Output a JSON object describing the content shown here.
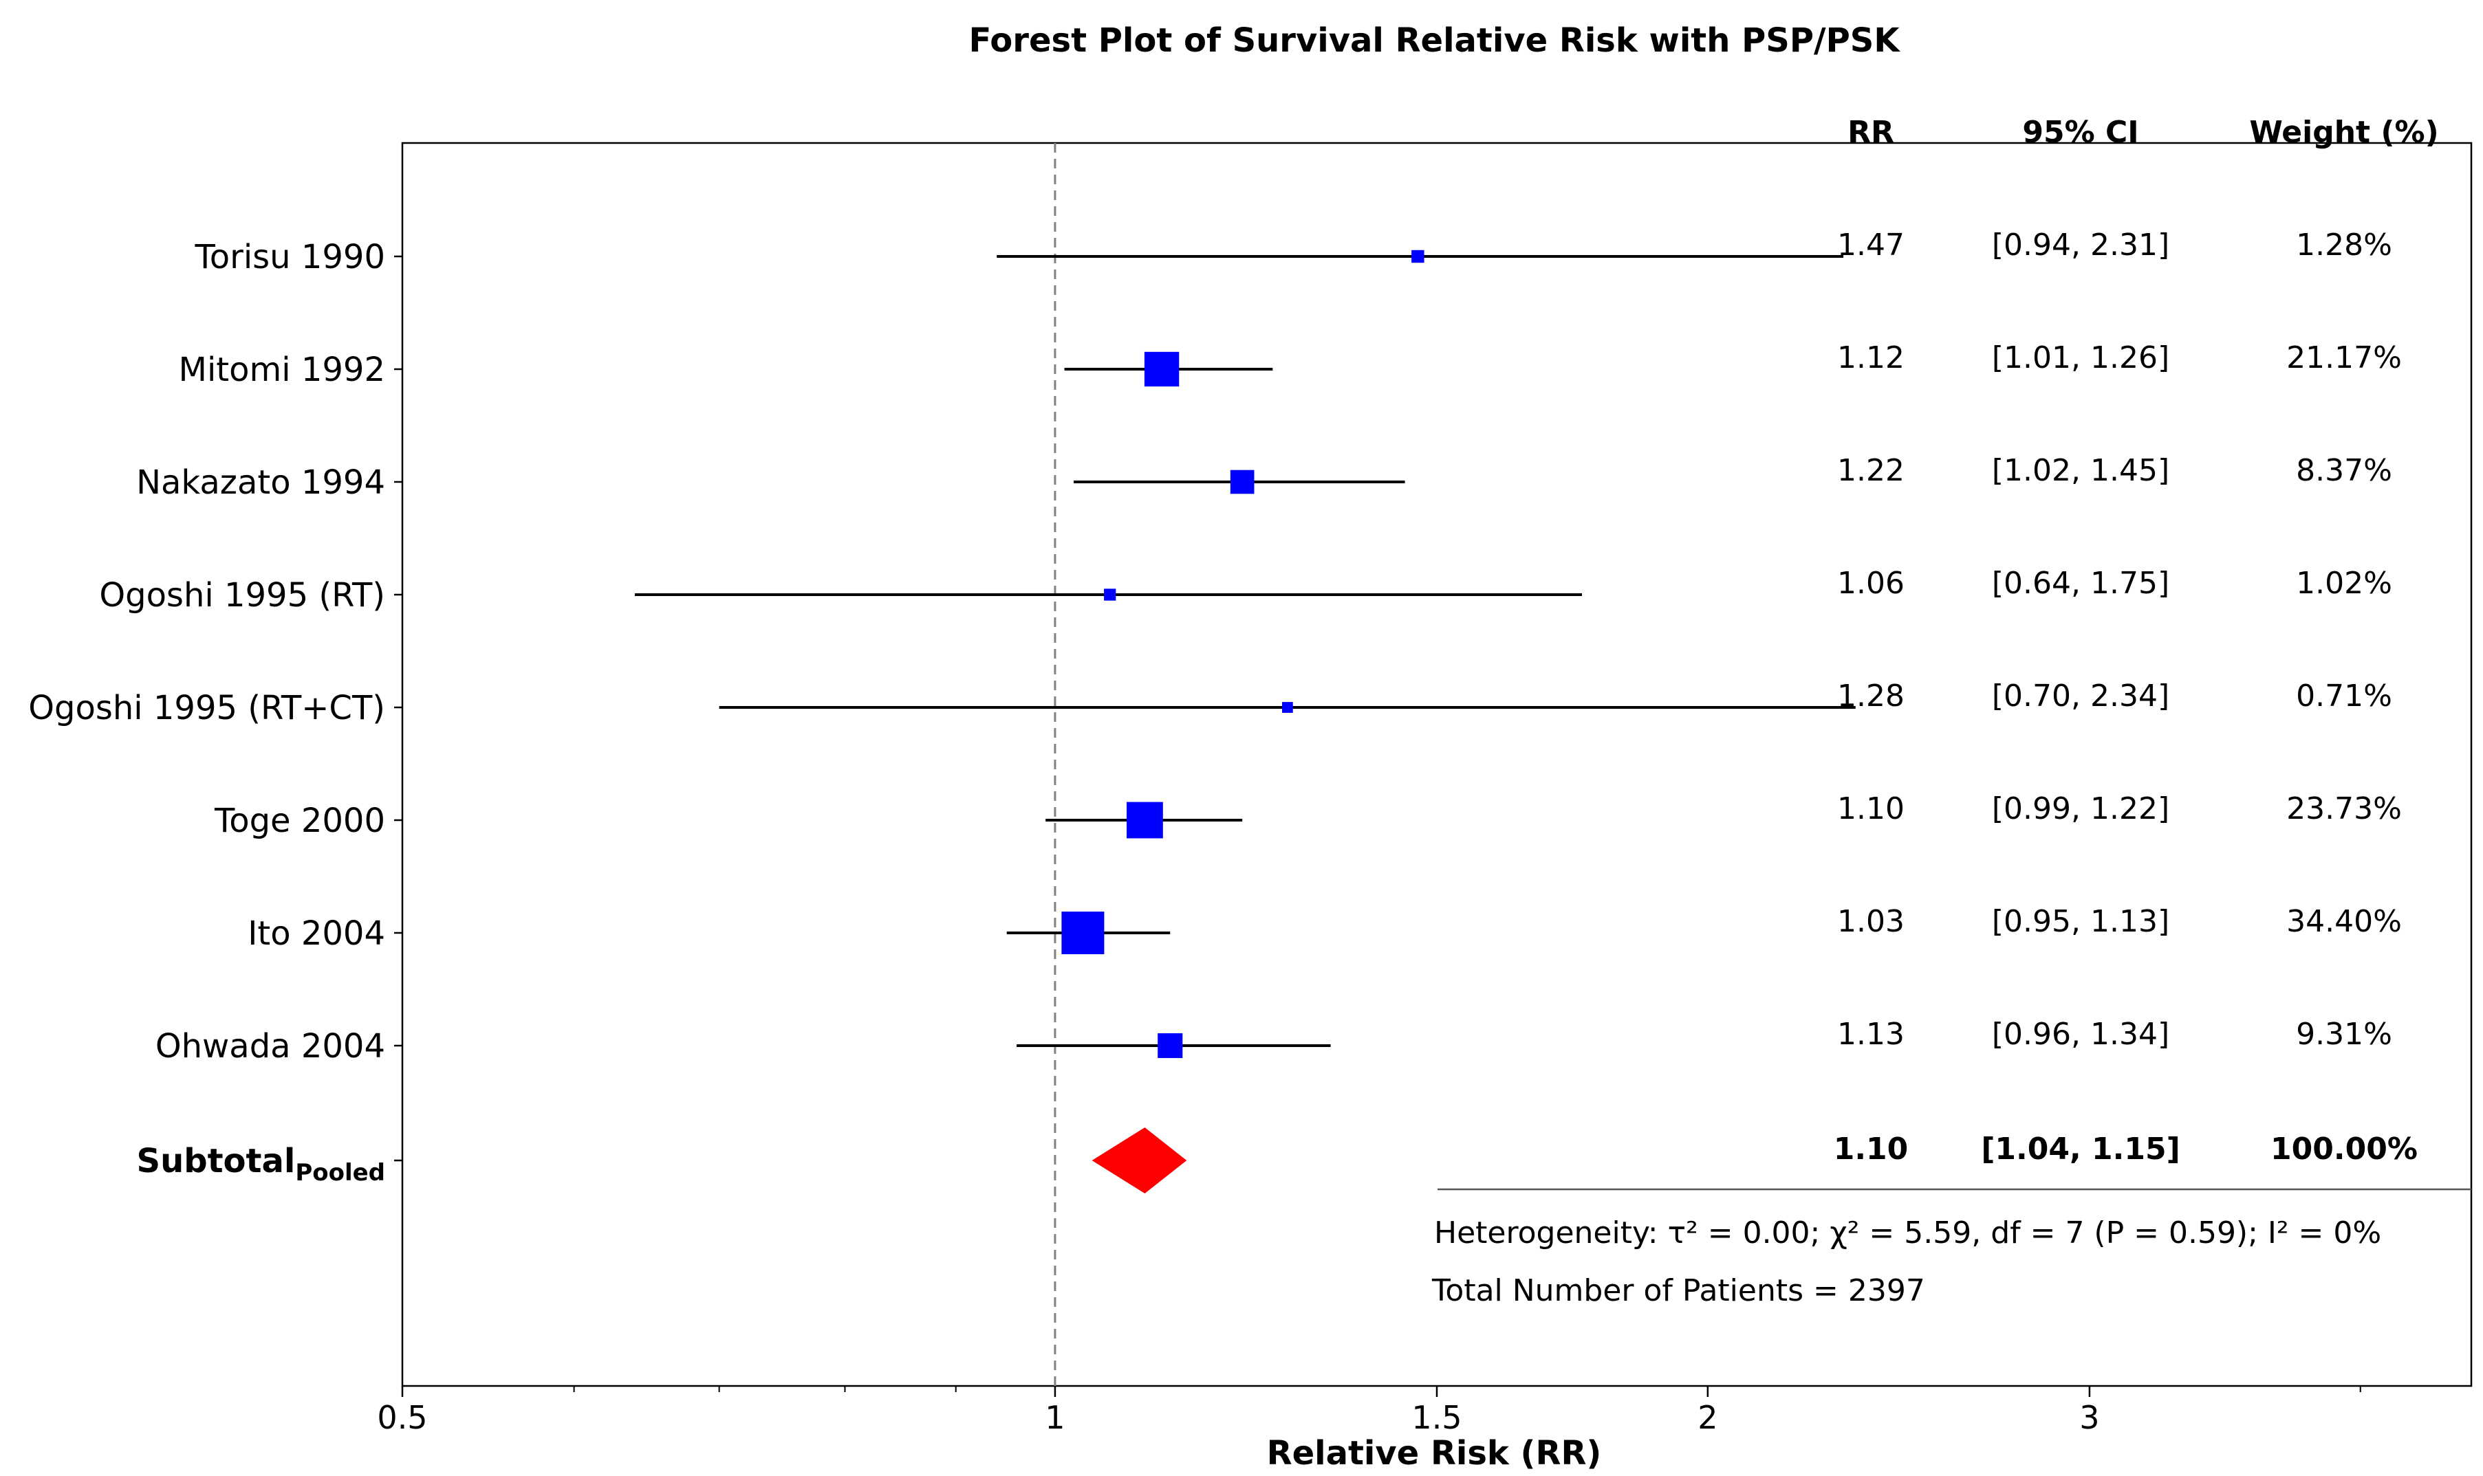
{
  "chart_data": {
    "type": "forest",
    "title": "Forest Plot of Survival Relative Risk with PSP/PSK",
    "xlabel": "Relative Risk (RR)",
    "x_scale": "log",
    "xlim": [
      0.5,
      4.5
    ],
    "x_ticks": [
      {
        "value": 0.5,
        "label": "0.5"
      },
      {
        "value": 1,
        "label": "1"
      },
      {
        "value": 1.5,
        "label": "1.5"
      },
      {
        "value": 2,
        "label": "2"
      },
      {
        "value": 3,
        "label": "3"
      }
    ],
    "minor_ticks": [
      0.6,
      0.7,
      0.8,
      0.9,
      4
    ],
    "reference_line": 1,
    "columns": {
      "rr": "RR",
      "ci": "95% CI",
      "weight": "Weight (%)"
    },
    "studies": [
      {
        "name": "Torisu 1990",
        "rr": 1.47,
        "lo": 0.94,
        "hi": 2.31,
        "rr_text": "1.47",
        "ci_text": "[0.94, 2.31]",
        "weight": 1.28,
        "weight_text": "1.28%"
      },
      {
        "name": "Mitomi 1992",
        "rr": 1.12,
        "lo": 1.01,
        "hi": 1.26,
        "rr_text": "1.12",
        "ci_text": "[1.01, 1.26]",
        "weight": 21.17,
        "weight_text": "21.17%"
      },
      {
        "name": "Nakazato 1994",
        "rr": 1.22,
        "lo": 1.02,
        "hi": 1.45,
        "rr_text": "1.22",
        "ci_text": "[1.02, 1.45]",
        "weight": 8.37,
        "weight_text": "8.37%"
      },
      {
        "name": "Ogoshi 1995 (RT)",
        "rr": 1.06,
        "lo": 0.64,
        "hi": 1.75,
        "rr_text": "1.06",
        "ci_text": "[0.64, 1.75]",
        "weight": 1.02,
        "weight_text": "1.02%"
      },
      {
        "name": "Ogoshi 1995 (RT+CT)",
        "rr": 1.28,
        "lo": 0.7,
        "hi": 2.34,
        "rr_text": "1.28",
        "ci_text": "[0.70, 2.34]",
        "weight": 0.71,
        "weight_text": "0.71%"
      },
      {
        "name": "Toge 2000",
        "rr": 1.1,
        "lo": 0.99,
        "hi": 1.22,
        "rr_text": "1.10",
        "ci_text": "[0.99, 1.22]",
        "weight": 23.73,
        "weight_text": "23.73%"
      },
      {
        "name": "Ito 2004",
        "rr": 1.03,
        "lo": 0.95,
        "hi": 1.13,
        "rr_text": "1.03",
        "ci_text": "[0.95, 1.13]",
        "weight": 34.4,
        "weight_text": "34.40%"
      },
      {
        "name": "Ohwada 2004",
        "rr": 1.13,
        "lo": 0.96,
        "hi": 1.34,
        "rr_text": "1.13",
        "ci_text": "[0.96, 1.34]",
        "weight": 9.31,
        "weight_text": "9.31%"
      }
    ],
    "pooled": {
      "label": "Subtotal",
      "label_sub": "Pooled",
      "rr": 1.1,
      "lo": 1.04,
      "hi": 1.15,
      "rr_text": "1.10",
      "ci_text": "[1.04, 1.15]",
      "weight_text": "100.00%"
    },
    "heterogeneity_text": "Heterogeneity: τ² = 0.00; χ² = 5.59, df = 7 (P = 0.59); I² = 0%",
    "total_text": "Total Number of Patients = 2397",
    "colors": {
      "study_marker": "#0000ff",
      "pooled_marker": "#ff0000",
      "ci_line": "#000000",
      "reference_line": "#808080"
    }
  }
}
